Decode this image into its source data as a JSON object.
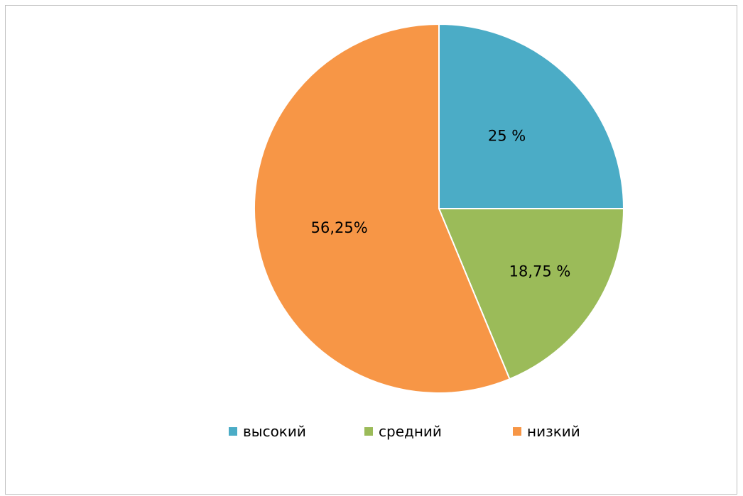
{
  "chart_data": {
    "type": "pie",
    "categories": [
      "высокий",
      "средний",
      "низкий"
    ],
    "values": [
      25,
      18.75,
      56.25
    ],
    "data_labels": [
      "25 %",
      "18,75 %",
      "56,25%"
    ],
    "colors": [
      "#4bacc6",
      "#9bbb59",
      "#f79646"
    ],
    "start_angle_deg": 0,
    "direction": "clockwise",
    "legend_position": "bottom",
    "title": ""
  }
}
